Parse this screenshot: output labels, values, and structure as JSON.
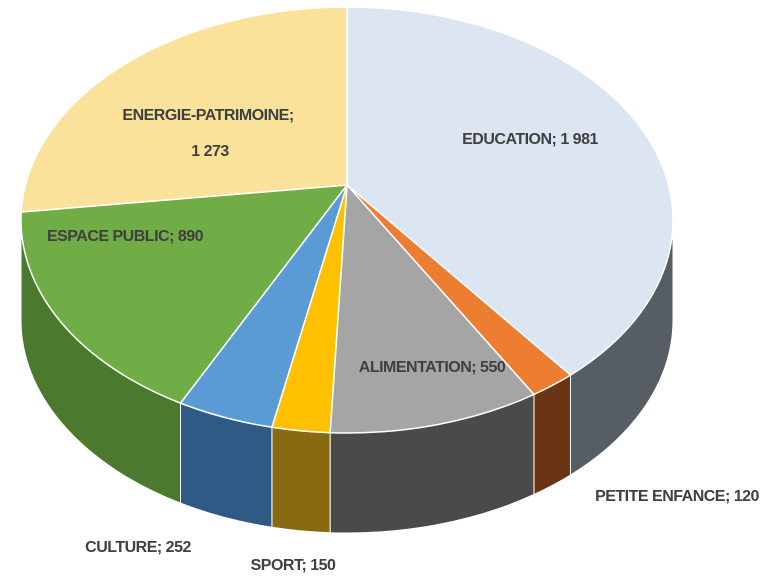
{
  "chart_data": {
    "type": "pie3d",
    "values": [
      1981,
      120,
      550,
      150,
      252,
      890,
      1273
    ],
    "value_labels": [
      "EDUCATION; 1 981",
      "PETITE ENFANCE; 120",
      "ALIMENTATION; 550",
      "SPORT; 150",
      "CULTURE; 252",
      "ESPACE PUBLIC; 890",
      "ENERGIE-PATRIMOINE; 1 273"
    ],
    "colors": [
      "#dce6f2",
      "#ed7d31",
      "#a5a5a5",
      "#ffc000",
      "#5b9bd5",
      "#70ad47",
      "#fae29a"
    ],
    "side_colors": [
      "#565d63",
      "#6b3414",
      "#4a4a4a",
      "#8a6a10",
      "#2f5a85",
      "#4b7a2e",
      "#a8974f"
    ]
  }
}
